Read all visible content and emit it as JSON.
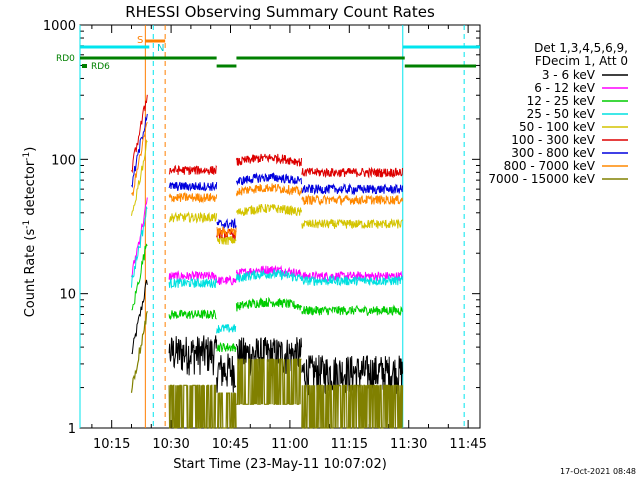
{
  "chart_data": {
    "type": "line",
    "title": "RHESSI Observing Summary Count Rates",
    "xlabel": "Start Time (23-May-11 10:07:02)",
    "ylabel": "Count Rate (s",
    "ylabel_sup1": "-1",
    "ylabel_mid": " detector",
    "ylabel_sup2": "-1",
    "ylabel_end": ")",
    "y_scale": "log",
    "xlim_minutes_after_1000": [
      7,
      48
    ],
    "ylim": [
      1,
      1000
    ],
    "x_ticks": [
      {
        "m": 15,
        "label": "10:15"
      },
      {
        "m": 30,
        "label": "10:30"
      },
      {
        "m": 45,
        "label": "10:45"
      },
      {
        "m": 60,
        "label": "11:00"
      },
      {
        "m": 75,
        "label": "11:15"
      },
      {
        "m": 90,
        "label": "11:30"
      },
      {
        "m": 105,
        "label": "11:45"
      }
    ],
    "y_ticks": [
      {
        "v": 1,
        "label": "1"
      },
      {
        "v": 10,
        "label": "10"
      },
      {
        "v": 100,
        "label": "100"
      },
      {
        "v": 1000,
        "label": "1000"
      }
    ],
    "legend_header": [
      "Det 1,3,4,5,6,9,",
      "FDecim 1, Att 0"
    ],
    "series": [
      {
        "name": "3 - 6 keV",
        "color": "#000000",
        "levels": [
          3.5,
          2.6,
          3.4,
          2.5
        ]
      },
      {
        "name": "6 - 12 keV",
        "color": "#ff00ff",
        "levels": [
          13.5,
          12.5,
          14.0,
          13.5
        ]
      },
      {
        "name": "12 - 25 keV",
        "color": "#00cc00",
        "levels": [
          7.0,
          4.0,
          8.0,
          7.5
        ]
      },
      {
        "name": "25 - 50 keV",
        "color": "#00e0e0",
        "levels": [
          12.0,
          5.5,
          13.0,
          12.5
        ]
      },
      {
        "name": "50 - 100 keV",
        "color": "#d4c400",
        "levels": [
          37.0,
          25.0,
          40.0,
          33.0
        ]
      },
      {
        "name": "100 - 300 keV",
        "color": "#dd0000",
        "levels": [
          83.0,
          28.0,
          95.0,
          80.0
        ]
      },
      {
        "name": "300 - 800 keV",
        "color": "#0000dd",
        "levels": [
          63.0,
          33.0,
          68.0,
          60.0
        ]
      },
      {
        "name": "800 - 7000 keV",
        "color": "#ff8800",
        "levels": [
          52.0,
          29.0,
          57.0,
          50.0
        ]
      },
      {
        "name": "7000 - 15000 keV",
        "color": "#808000",
        "levels": [
          1.6,
          1.4,
          2.5,
          1.6
        ]
      }
    ],
    "segments_minutes": [
      [
        29.5,
        41.5
      ],
      [
        41.5,
        46.5
      ],
      [
        46.5,
        63.0
      ],
      [
        63.0,
        88.5
      ]
    ],
    "pre_gap_segment_minutes": [
      20,
      24
    ],
    "flags": {
      "S_label": "S",
      "N_label": "N",
      "RD0_label": "RD0",
      "RD6_label": "RD6",
      "saa_color": "#00e5ee",
      "flare_color": "#ff7f00",
      "rd_color": "#008000"
    },
    "timestamp": "17-Oct-2021 08:48"
  }
}
